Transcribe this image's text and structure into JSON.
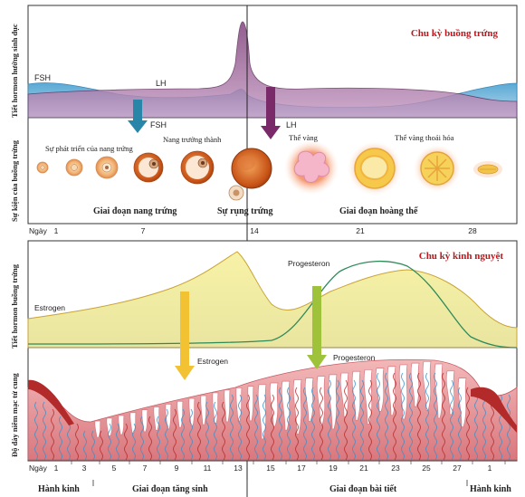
{
  "ovarian": {
    "title": "Chu kỳ buồng trứng",
    "hormone_axis_label": "Tiết hormon hướng sinh dục",
    "events_axis_label": "Sự kiện của buồng trứng",
    "fsh_left": "FSH",
    "lh_top": "LH",
    "fsh_arrow": "FSH",
    "lh_arrow": "LH",
    "follicle_development": "Sự phát triển của nang trứng",
    "mature_follicle": "Nang trưởng thành",
    "corpus_luteum": "Thể vàng",
    "degenerating_corpus_luteum": "Thể vàng thoái hóa",
    "follicular_phase": "Giai đoạn nang trứng",
    "ovulation": "Sự rụng trứng",
    "luteal_phase": "Giai đoạn hoàng thể"
  },
  "day_axis_top": {
    "label": "Ngày",
    "days": [
      "1",
      "7",
      "14",
      "21",
      "28"
    ]
  },
  "uterine": {
    "title": "Chu kỳ kinh nguyệt",
    "hormone_axis_label": "Tiết hormon buồng trứng",
    "endometrium_axis_label": "Độ dày niêm mạc tử cung",
    "estrogen_curve": "Estrogen",
    "progesterone_curve": "Progesteron",
    "estrogen_arrow": "Estrogen",
    "progesterone_arrow": "Progesteron"
  },
  "day_axis_bottom": {
    "label": "Ngày",
    "days": [
      "1",
      "3",
      "5",
      "7",
      "9",
      "11",
      "13",
      "15",
      "17",
      "19",
      "21",
      "23",
      "25",
      "27",
      "1"
    ]
  },
  "phases": {
    "menstruation_left": "Hành kinh",
    "proliferative": "Giai đoạn tăng sinh",
    "secretory": "Giai đoạn bài tiết",
    "menstruation_right": "Hành kinh"
  },
  "colors": {
    "title_red": "#c0161c",
    "fsh_fill": "#6fb6dc",
    "lh_fill": "#9a5f95",
    "estrogen_fill": "#f3ee9a",
    "progesterone_line": "#2f8a5a",
    "estrogen_line": "#c9a436",
    "fsh_arrow": "#2a86a8",
    "lh_arrow": "#7a2a68",
    "estrogen_arrow": "#f2c232",
    "progesterone_arrow": "#9ec33a",
    "endometrium": "#e8979c",
    "vessel_blue": "#3a8fc9",
    "vessel_red": "#b22a2a"
  }
}
